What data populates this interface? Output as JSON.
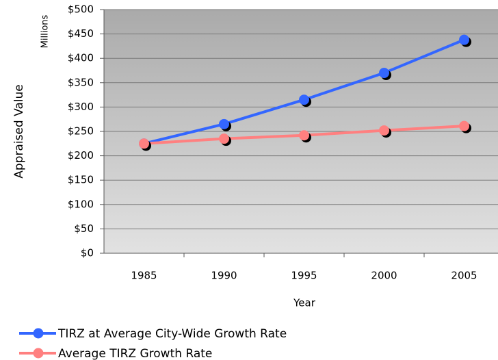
{
  "chart_data": {
    "type": "line",
    "y_label": "Appraised Value",
    "y_unit_label": "Millions",
    "x_label": "Year",
    "categories": [
      "1985",
      "1990",
      "1995",
      "2000",
      "2005"
    ],
    "series": [
      {
        "name": "TIRZ at Average City-Wide Growth Rate",
        "color": "#3366ff",
        "values": [
          225,
          265,
          315,
          370,
          438
        ]
      },
      {
        "name": "Average TIRZ Growth Rate",
        "color": "#ff8080",
        "values": [
          225,
          235,
          242,
          252,
          261
        ]
      }
    ],
    "ylim": [
      0,
      500
    ],
    "yticks": [
      {
        "value": 0,
        "label": "$0"
      },
      {
        "value": 50,
        "label": "$50"
      },
      {
        "value": 100,
        "label": "$100"
      },
      {
        "value": 150,
        "label": "$150"
      },
      {
        "value": 200,
        "label": "$200"
      },
      {
        "value": 250,
        "label": "$250"
      },
      {
        "value": 300,
        "label": "$300"
      },
      {
        "value": 350,
        "label": "$350"
      },
      {
        "value": 400,
        "label": "$400"
      },
      {
        "value": 450,
        "label": "$450"
      },
      {
        "value": 500,
        "label": "$500"
      }
    ],
    "grid": true
  }
}
